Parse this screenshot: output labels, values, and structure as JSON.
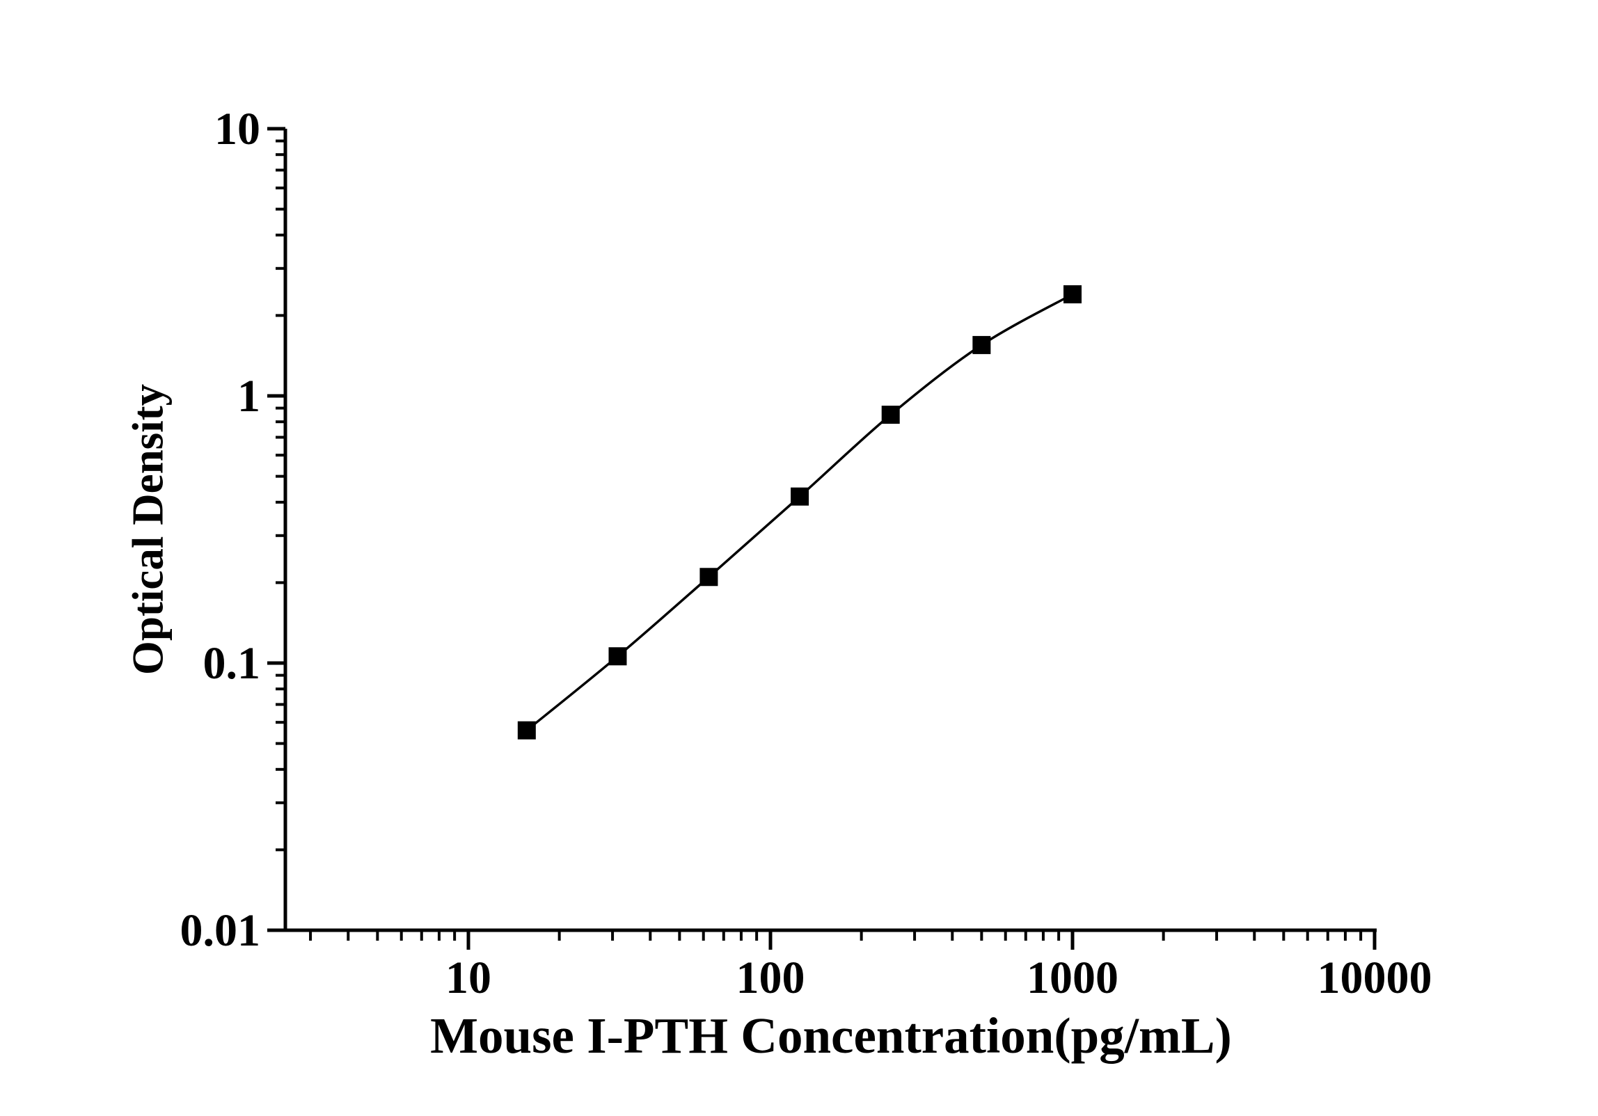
{
  "chart_data": {
    "type": "line",
    "title": "",
    "xlabel": "Mouse I-PTH Concentration(pg/mL)",
    "ylabel": "Optical Density",
    "x_scale": "log",
    "y_scale": "log",
    "xlim": [
      2.5,
      10200
    ],
    "ylim": [
      0.01,
      10
    ],
    "grid": false,
    "legend": "none",
    "x_ticks": {
      "values": [
        10,
        100,
        1000,
        10000
      ],
      "labels": [
        "10",
        "100",
        "1000",
        "10000"
      ]
    },
    "y_ticks": {
      "values": [
        0.01,
        0.1,
        1,
        10
      ],
      "labels": [
        "0.01",
        "0.1",
        "1",
        "10"
      ]
    },
    "series": [
      {
        "name": "standard-curve",
        "marker": "filled-square",
        "line_style": "smooth-solid",
        "points": [
          {
            "x": 15.6,
            "y": 0.056
          },
          {
            "x": 31.2,
            "y": 0.106
          },
          {
            "x": 62.5,
            "y": 0.21
          },
          {
            "x": 125,
            "y": 0.42
          },
          {
            "x": 250,
            "y": 0.85
          },
          {
            "x": 500,
            "y": 1.55
          },
          {
            "x": 1000,
            "y": 2.4
          }
        ]
      }
    ],
    "colors": {
      "line": "#000000",
      "marker": "#000000",
      "axis": "#000000",
      "text": "#000000",
      "background": "#ffffff"
    }
  }
}
